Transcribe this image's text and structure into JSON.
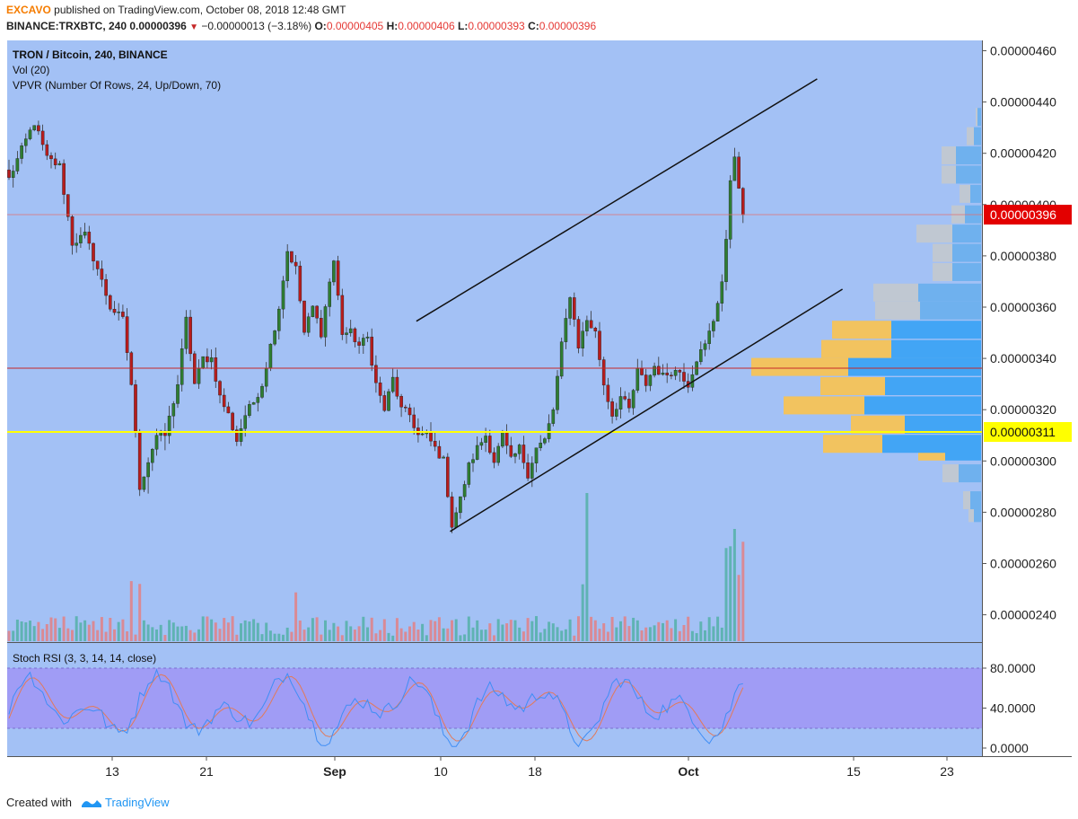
{
  "header": {
    "author": "EXCAVO",
    "published_text": "published on TradingView.com, October 08, 2018 12:48 GMT",
    "symbol": "BINANCE:TRXBTC, 240",
    "last": "0.00000396",
    "change": "−0.00000013 (−3.18%)",
    "o_label": "O:",
    "o_value": "0.00000405",
    "h_label": "H:",
    "h_value": "0.00000406",
    "l_label": "L:",
    "l_value": "0.00000393",
    "c_label": "C:",
    "c_value": "0.00000396"
  },
  "legend": {
    "title": "TRON / Bitcoin, 240, BINANCE",
    "vol": "Vol (20)",
    "vpvr": "VPVR (Number Of Rows, 24, Up/Down, 70)",
    "stoch": "Stoch RSI (3, 3, 14, 14, close)"
  },
  "footer": {
    "created_with": "Created with",
    "brand": "TradingView"
  },
  "colors": {
    "chart_bg": "#a3c1f5",
    "stoch_band": "#a09cf5",
    "up_candle": "#2e7d32",
    "down_candle": "#b71c1c",
    "vol_up": "#5fb3b3",
    "vol_down": "#d98a95",
    "vpvr_up": "#42a5f5",
    "vpvr_down": "#f2c35f",
    "yellow_line": "#ffff00",
    "red_line": "#c62828",
    "price_badge": "#e30000",
    "stoch_k": "#3f8ef5",
    "stoch_d": "#e27a5a"
  },
  "chart_data": {
    "type": "candlestick",
    "x_ticks": [
      "13",
      "21",
      "Sep",
      "10",
      "18",
      "Oct",
      "15",
      "23"
    ],
    "y_ticks": [
      "0.00000460",
      "0.00000440",
      "0.00000420",
      "0.00000400",
      "0.00000380",
      "0.00000360",
      "0.00000340",
      "0.00000320",
      "0.00000300",
      "0.00000280",
      "0.00000260",
      "0.00000240"
    ],
    "ylim": [
      2.31e-06,
      4.64e-06
    ],
    "last_price": "0.00000396",
    "marked_price": "0.00000311",
    "red_horizontal_level": 3.375e-06,
    "stoch_ticks": [
      "80.0000",
      "40.0000",
      "0.0000"
    ],
    "stoch_band": [
      20,
      80
    ],
    "price_path": [
      [
        0,
        4.1e-06
      ],
      [
        4,
        4.25e-06
      ],
      [
        6,
        4.32e-06
      ],
      [
        9,
        4.18e-06
      ],
      [
        12,
        4.15e-06
      ],
      [
        15,
        3.85e-06
      ],
      [
        18,
        3.88e-06
      ],
      [
        21,
        3.75e-06
      ],
      [
        24,
        3.6e-06
      ],
      [
        27,
        3.55e-06
      ],
      [
        29,
        3.3e-06
      ],
      [
        31,
        2.9e-06
      ],
      [
        33,
        3e-06
      ],
      [
        35,
        3.1e-06
      ],
      [
        37,
        3.1e-06
      ],
      [
        40,
        3.3e-06
      ],
      [
        42,
        3.55e-06
      ],
      [
        44,
        3.3e-06
      ],
      [
        46,
        3.4e-06
      ],
      [
        48,
        3.4e-06
      ],
      [
        50,
        3.25e-06
      ],
      [
        52,
        3.18e-06
      ],
      [
        54,
        3.08e-06
      ],
      [
        56,
        3.18e-06
      ],
      [
        58,
        3.23e-06
      ],
      [
        60,
        3.3e-06
      ],
      [
        62,
        3.45e-06
      ],
      [
        64,
        3.6e-06
      ],
      [
        66,
        3.82e-06
      ],
      [
        68,
        3.75e-06
      ],
      [
        70,
        3.5e-06
      ],
      [
        72,
        3.6e-06
      ],
      [
        74,
        3.5e-06
      ],
      [
        76,
        3.7e-06
      ],
      [
        77,
        3.78e-06
      ],
      [
        79,
        3.5e-06
      ],
      [
        81,
        3.5e-06
      ],
      [
        83,
        3.45e-06
      ],
      [
        85,
        3.48e-06
      ],
      [
        87,
        3.3e-06
      ],
      [
        89,
        3.2e-06
      ],
      [
        91,
        3.32e-06
      ],
      [
        93,
        3.2e-06
      ],
      [
        95,
        3.18e-06
      ],
      [
        97,
        3.1e-06
      ],
      [
        99,
        3.1e-06
      ],
      [
        101,
        3.05e-06
      ],
      [
        103,
        3e-06
      ],
      [
        105,
        2.75e-06
      ],
      [
        107,
        2.85e-06
      ],
      [
        109,
        2.98e-06
      ],
      [
        111,
        3.05e-06
      ],
      [
        113,
        3.1e-06
      ],
      [
        115,
        3e-06
      ],
      [
        117,
        3.1e-06
      ],
      [
        119,
        3e-06
      ],
      [
        121,
        3.05e-06
      ],
      [
        123,
        2.95e-06
      ],
      [
        125,
        3.05e-06
      ],
      [
        127,
        3.08e-06
      ],
      [
        129,
        3.2e-06
      ],
      [
        131,
        3.45e-06
      ],
      [
        133,
        3.65e-06
      ],
      [
        135,
        3.45e-06
      ],
      [
        137,
        3.55e-06
      ],
      [
        139,
        3.5e-06
      ],
      [
        141,
        3.3e-06
      ],
      [
        143,
        3.18e-06
      ],
      [
        145,
        3.25e-06
      ],
      [
        147,
        3.2e-06
      ],
      [
        149,
        3.35e-06
      ],
      [
        151,
        3.3e-06
      ],
      [
        153,
        3.37e-06
      ],
      [
        155,
        3.33e-06
      ],
      [
        157,
        3.35e-06
      ],
      [
        159,
        3.35e-06
      ],
      [
        161,
        3.3e-06
      ],
      [
        163,
        3.4e-06
      ],
      [
        165,
        3.45e-06
      ],
      [
        167,
        3.55e-06
      ],
      [
        169,
        3.7e-06
      ],
      [
        170,
        3.85e-06
      ],
      [
        171,
        4.1e-06
      ],
      [
        172,
        4.2e-06
      ],
      [
        173,
        4.05e-06
      ],
      [
        174,
        3.96e-06
      ]
    ],
    "trend_lines": [
      {
        "from": [
          105,
          2.725e-06
        ],
        "to": [
          198,
          3.67e-06
        ]
      },
      {
        "from": [
          97,
          3.545e-06
        ],
        "to": [
          192,
          4.49e-06
        ]
      }
    ],
    "vpvr_rows": [
      {
        "price": 2.795e-06,
        "up": 8,
        "down": 6
      },
      {
        "price": 2.845e-06,
        "up": 12,
        "down": 8
      },
      {
        "price": 2.95e-06,
        "up": 25,
        "down": 18
      },
      {
        "price": 3.035e-06,
        "up": 40,
        "down": 30
      },
      {
        "price": 3.065e-06,
        "up": 110,
        "down": 66
      },
      {
        "price": 3.14e-06,
        "up": 85,
        "down": 60
      },
      {
        "price": 3.215e-06,
        "up": 130,
        "down": 90
      },
      {
        "price": 3.29e-06,
        "up": 107,
        "down": 72
      },
      {
        "price": 3.365e-06,
        "up": 148,
        "down": 108
      },
      {
        "price": 3.435e-06,
        "up": 100,
        "down": 78
      },
      {
        "price": 3.51e-06,
        "up": 100,
        "down": 66
      },
      {
        "price": 3.585e-06,
        "up": 68,
        "down": 50
      },
      {
        "price": 3.655e-06,
        "up": 70,
        "down": 50
      },
      {
        "price": 3.735e-06,
        "up": 32,
        "down": 22
      },
      {
        "price": 3.81e-06,
        "up": 32,
        "down": 22
      },
      {
        "price": 3.885e-06,
        "up": 32,
        "down": 40
      },
      {
        "price": 3.96e-06,
        "up": 18,
        "down": 15
      },
      {
        "price": 4.04e-06,
        "up": 12,
        "down": 12
      },
      {
        "price": 4.115e-06,
        "up": 28,
        "down": 16
      },
      {
        "price": 4.19e-06,
        "up": 28,
        "down": 16
      },
      {
        "price": 4.265e-06,
        "up": 8,
        "down": 8
      },
      {
        "price": 4.34e-06,
        "up": 4,
        "down": 2
      }
    ]
  }
}
